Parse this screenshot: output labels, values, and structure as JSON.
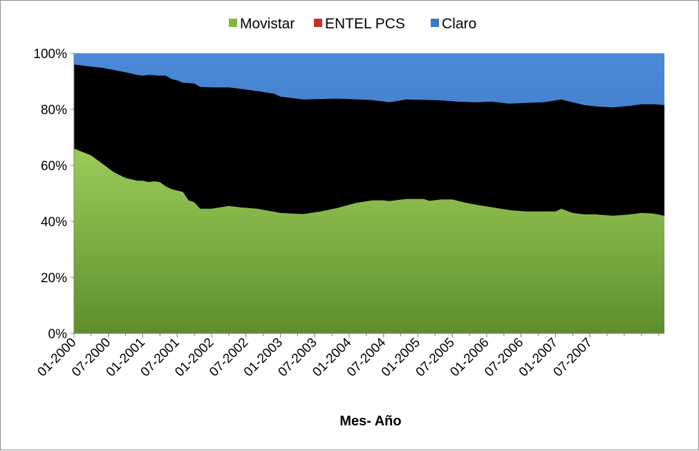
{
  "chart_data": {
    "type": "area",
    "stacked": true,
    "normalized": true,
    "title": "",
    "xlabel": "Mes- Año",
    "ylabel": "",
    "ylim": [
      0,
      100
    ],
    "y_ticks": [
      "0%",
      "20%",
      "40%",
      "60%",
      "80%",
      "100%"
    ],
    "legend_position": "top",
    "x_ticks": [
      "01-2000",
      "07-2000",
      "01-2001",
      "07-2001",
      "01-2002",
      "07-2002",
      "01-2003",
      "07-2003",
      "01-2004",
      "07-2004",
      "01-2005",
      "07-2005",
      "01-2006",
      "07-2006",
      "01-2007",
      "07-2007"
    ],
    "series": [
      {
        "name": "Movistar",
        "color": "#7fb640",
        "points": [
          [
            0,
            66
          ],
          [
            3,
            63.5
          ],
          [
            5,
            60.5
          ],
          [
            7,
            57.5
          ],
          [
            9,
            55.5
          ],
          [
            11,
            54.5
          ],
          [
            12,
            54.5
          ],
          [
            13,
            54
          ],
          [
            14,
            54.3
          ],
          [
            15,
            54
          ],
          [
            16,
            52.5
          ],
          [
            17,
            51.5
          ],
          [
            18,
            51
          ],
          [
            19,
            50.5
          ],
          [
            20,
            47.5
          ],
          [
            21,
            46.8
          ],
          [
            22,
            44.5
          ],
          [
            24,
            44.5
          ],
          [
            27,
            45.5
          ],
          [
            29,
            45
          ],
          [
            32,
            44.5
          ],
          [
            36,
            43
          ],
          [
            40,
            42.6
          ],
          [
            43,
            43.5
          ],
          [
            46,
            44.8
          ],
          [
            49,
            46.5
          ],
          [
            52,
            47.5
          ],
          [
            54,
            47.5
          ],
          [
            55,
            47.2
          ],
          [
            56,
            47.5
          ],
          [
            58,
            48
          ],
          [
            61,
            48
          ],
          [
            62,
            47.3
          ],
          [
            64,
            47.8
          ],
          [
            66,
            47.8
          ],
          [
            68,
            46.8
          ],
          [
            70,
            46
          ],
          [
            73,
            45
          ],
          [
            76,
            44
          ],
          [
            79,
            43.5
          ],
          [
            82,
            43.5
          ],
          [
            84,
            43.5
          ],
          [
            85,
            44.5
          ],
          [
            87,
            43
          ],
          [
            89,
            42.5
          ],
          [
            91,
            42.5
          ],
          [
            94,
            42
          ],
          [
            97,
            42.5
          ],
          [
            99,
            43
          ],
          [
            101,
            42.8
          ],
          [
            103,
            42
          ]
        ]
      },
      {
        "name": "ENTEL PCS",
        "color": "#c8302c",
        "points": [
          [
            0,
            96
          ],
          [
            3,
            95.2
          ],
          [
            5,
            94.8
          ],
          [
            7,
            94
          ],
          [
            9,
            93.2
          ],
          [
            11,
            92.3
          ],
          [
            12,
            92
          ],
          [
            13,
            92.3
          ],
          [
            15,
            92
          ],
          [
            16,
            92
          ],
          [
            17,
            90.8
          ],
          [
            18,
            90.3
          ],
          [
            19,
            89.5
          ],
          [
            21,
            89.2
          ],
          [
            22,
            88
          ],
          [
            24,
            87.8
          ],
          [
            27,
            87.8
          ],
          [
            29,
            87.3
          ],
          [
            32,
            86.5
          ],
          [
            35,
            85.5
          ],
          [
            36,
            84.5
          ],
          [
            40,
            83.5
          ],
          [
            46,
            83.8
          ],
          [
            52,
            83.3
          ],
          [
            55,
            82.5
          ],
          [
            58,
            83.5
          ],
          [
            62,
            83.3
          ],
          [
            64,
            83.2
          ],
          [
            67,
            82.7
          ],
          [
            70,
            82.5
          ],
          [
            73,
            82.7
          ],
          [
            76,
            82
          ],
          [
            79,
            82.3
          ],
          [
            82,
            82.5
          ],
          [
            85,
            83.5
          ],
          [
            87,
            82.5
          ],
          [
            89,
            81.5
          ],
          [
            91,
            81
          ],
          [
            94,
            80.7
          ],
          [
            97,
            81.2
          ],
          [
            99,
            81.8
          ],
          [
            101,
            81.8
          ],
          [
            103,
            81.5
          ]
        ]
      },
      {
        "name": "Claro",
        "color": "#3c77c8",
        "points": [
          [
            0,
            100
          ],
          [
            103,
            100
          ]
        ]
      }
    ]
  }
}
